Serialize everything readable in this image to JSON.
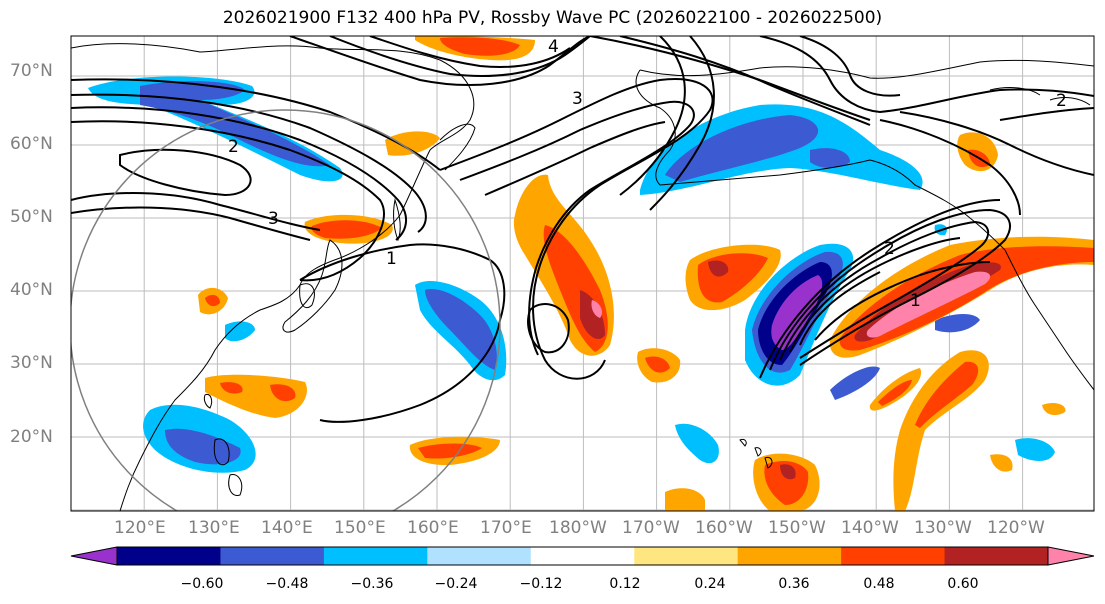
{
  "title": "2026021900 F132 400 hPa PV, Rossby Wave PC (2026022100 - 2026022500)",
  "map": {
    "latitude_labels": [
      "70°N",
      "60°N",
      "50°N",
      "40°N",
      "30°N",
      "20°N"
    ],
    "longitude_labels": [
      "120°E",
      "130°E",
      "140°E",
      "150°E",
      "160°E",
      "170°E",
      "180°W",
      "170°W",
      "160°W",
      "150°W",
      "140°W",
      "130°W",
      "120°W"
    ],
    "contour_labels": [
      "1",
      "2",
      "3",
      "4"
    ],
    "ring_color": "#808080"
  },
  "colorbar": {
    "ticks": [
      "−0.60",
      "−0.48",
      "−0.36",
      "−0.24",
      "−0.12",
      "0.12",
      "0.24",
      "0.36",
      "0.48",
      "0.60"
    ],
    "colors": [
      "#9932cc",
      "#00008b",
      "#3c5ad2",
      "#00bfff",
      "#b0e2ff",
      "#ffffff",
      "#ffe680",
      "#ffa500",
      "#ff4000",
      "#b22222",
      "#ff82ab"
    ]
  }
}
